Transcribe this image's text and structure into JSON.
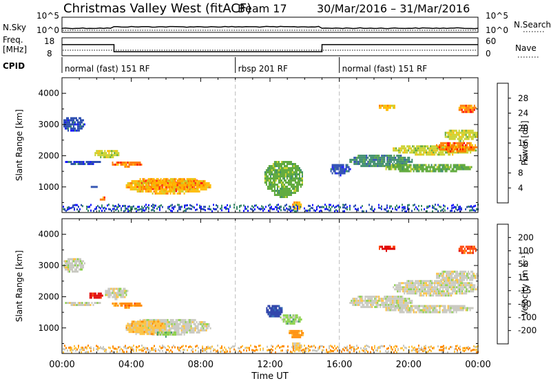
{
  "chart_data": {
    "type": "heatmap",
    "title": "Christmas Valley West (fitACF)",
    "beam": "Beam 17",
    "date_range": "30/Mar/2016 – 31/Mar/2016",
    "xlabel": "Time UT",
    "x_ticks": [
      "00:00",
      "04:00",
      "08:00",
      "12:00",
      "16:00",
      "20:00",
      "00:00"
    ],
    "x_range_hours": [
      0,
      24
    ],
    "top_panels": {
      "nsky_label": "N.Sky",
      "nsky_ticks": [
        "10^5",
        "10^0"
      ],
      "nsearch_label": "N.Search",
      "nsearch_ticks": [
        "10^5",
        "10^0"
      ],
      "freq_label": "Freq.",
      "freq_unit": "[MHz]",
      "freq_ticks": [
        18,
        8
      ],
      "nave_label": "Nave",
      "nave_ticks": [
        60,
        0
      ],
      "cpid_label": "CPID",
      "freq_trace": [
        [
          0,
          14.2
        ],
        [
          3.0,
          14.2
        ],
        [
          3.0,
          10.2
        ],
        [
          15.0,
          10.2
        ],
        [
          15.0,
          14.2
        ],
        [
          24,
          14.2
        ]
      ],
      "cpid_segments": [
        {
          "start": 0,
          "end": 10.0,
          "label": "normal (fast) 151 RF"
        },
        {
          "start": 10.0,
          "end": 16.0,
          "label": "rbsp 201 RF"
        },
        {
          "start": 16.0,
          "end": 24,
          "label": "normal (fast) 151 RF"
        }
      ]
    },
    "panels": [
      {
        "name": "power",
        "ylabel": "Slant Range [km]",
        "ylim": [
          180,
          4500
        ],
        "y_ticks": [
          1000,
          2000,
          3000,
          4000
        ],
        "colorbar_label": "Power [dB]",
        "colorbar_ticks": [
          28,
          24,
          20,
          16,
          12,
          8,
          4
        ],
        "colorbar_colors": [
          "#ff0000",
          "#ff7a00",
          "#ffbb00",
          "#c9d12a",
          "#5ca838",
          "#3a8a6a",
          "#2d4fb0",
          "#1a1aff"
        ],
        "patches": [
          {
            "t0": 4.1,
            "t1": 8.3,
            "r0": 900,
            "r1": 1300,
            "level": 0
          },
          {
            "t0": 3.6,
            "t1": 8.6,
            "r0": 800,
            "r1": 1350,
            "level": 2
          },
          {
            "t0": 1.8,
            "t1": 3.3,
            "r0": 1960,
            "r1": 2250,
            "level": 3
          },
          {
            "t0": 2.8,
            "t1": 4.6,
            "r0": 1680,
            "r1": 1880,
            "level": 1
          },
          {
            "t0": 0.1,
            "t1": 2.2,
            "r0": 1750,
            "r1": 1900,
            "level": 6
          },
          {
            "t0": 0.0,
            "t1": 1.3,
            "r0": 2800,
            "r1": 3300,
            "level": 6
          },
          {
            "t0": 2.1,
            "t1": 2.5,
            "r0": 580,
            "r1": 760,
            "level": 1
          },
          {
            "t0": 1.5,
            "t1": 2.0,
            "r0": 1000,
            "r1": 1100,
            "level": 6
          },
          {
            "t0": 11.6,
            "t1": 13.9,
            "r0": 700,
            "r1": 1900,
            "level": 4
          },
          {
            "t0": 13.2,
            "t1": 13.8,
            "r0": 300,
            "r1": 600,
            "level": 2
          },
          {
            "t0": 15.4,
            "t1": 16.6,
            "r0": 1400,
            "r1": 1800,
            "level": 6
          },
          {
            "t0": 16.5,
            "t1": 20.2,
            "r0": 1650,
            "r1": 2100,
            "level": 5
          },
          {
            "t0": 18.5,
            "t1": 23.7,
            "r0": 1500,
            "r1": 1800,
            "level": 4
          },
          {
            "t0": 19.0,
            "t1": 23.9,
            "r0": 2050,
            "r1": 2400,
            "level": 3
          },
          {
            "t0": 21.5,
            "t1": 23.9,
            "r0": 2150,
            "r1": 2500,
            "level": 1
          },
          {
            "t0": 22.0,
            "t1": 24,
            "r0": 2500,
            "r1": 2900,
            "level": 3
          },
          {
            "t0": 18.2,
            "t1": 19.2,
            "r0": 3500,
            "r1": 3700,
            "level": 2
          },
          {
            "t0": 22.8,
            "t1": 23.9,
            "r0": 3400,
            "r1": 3700,
            "level": 1
          }
        ],
        "band_level": 6
      },
      {
        "name": "velocity",
        "ylabel": "Slant Range [km]",
        "ylim": [
          180,
          4500
        ],
        "y_ticks": [
          1000,
          2000,
          3000,
          4000
        ],
        "colorbar_label": "Velocity [m s⁻¹]",
        "colorbar_ticks": [
          "200",
          "100",
          "50",
          "15",
          "-15",
          "-50",
          "-100",
          "-200"
        ],
        "colorbar_colors": [
          "#2a3fa8",
          "#2d6bb5",
          "#3f9b68",
          "#8bd24a",
          "#c8c8c0",
          "#ffc341",
          "#ff8a00",
          "#ff4000",
          "#e00000"
        ],
        "patches": [
          {
            "t0": 3.6,
            "t1": 8.6,
            "r0": 800,
            "r1": 1350,
            "level": 4
          },
          {
            "t0": 3.6,
            "t1": 6.0,
            "r0": 800,
            "r1": 1300,
            "level": 5
          },
          {
            "t0": 5.4,
            "t1": 6.6,
            "r0": 750,
            "r1": 950,
            "level": 3
          },
          {
            "t0": 2.4,
            "t1": 3.8,
            "r0": 1950,
            "r1": 2350,
            "level": 4
          },
          {
            "t0": 2.8,
            "t1": 4.6,
            "r0": 1680,
            "r1": 1880,
            "level": 6
          },
          {
            "t0": 1.5,
            "t1": 2.3,
            "r0": 1950,
            "r1": 2200,
            "level": 8
          },
          {
            "t0": 0.1,
            "t1": 2.2,
            "r0": 1750,
            "r1": 1900,
            "level": 4
          },
          {
            "t0": 0.0,
            "t1": 1.3,
            "r0": 2800,
            "r1": 3300,
            "level": 4
          },
          {
            "t0": 11.7,
            "t1": 12.7,
            "r0": 1350,
            "r1": 1800,
            "level": 0
          },
          {
            "t0": 12.5,
            "t1": 13.8,
            "r0": 1150,
            "r1": 1500,
            "level": 3
          },
          {
            "t0": 13.0,
            "t1": 13.9,
            "r0": 700,
            "r1": 1000,
            "level": 6
          },
          {
            "t0": 13.2,
            "t1": 13.8,
            "r0": 300,
            "r1": 600,
            "level": 5
          },
          {
            "t0": 16.5,
            "t1": 20.2,
            "r0": 1650,
            "r1": 2100,
            "level": 4
          },
          {
            "t0": 18.5,
            "t1": 23.7,
            "r0": 1500,
            "r1": 1800,
            "level": 4
          },
          {
            "t0": 19.0,
            "t1": 24,
            "r0": 2050,
            "r1": 2600,
            "level": 4
          },
          {
            "t0": 21.5,
            "t1": 24,
            "r0": 2500,
            "r1": 2900,
            "level": 4
          },
          {
            "t0": 18.2,
            "t1": 19.2,
            "r0": 3500,
            "r1": 3700,
            "level": 8
          },
          {
            "t0": 22.8,
            "t1": 23.9,
            "r0": 3400,
            "r1": 3700,
            "level": 7
          }
        ],
        "band_level": 5
      }
    ]
  }
}
